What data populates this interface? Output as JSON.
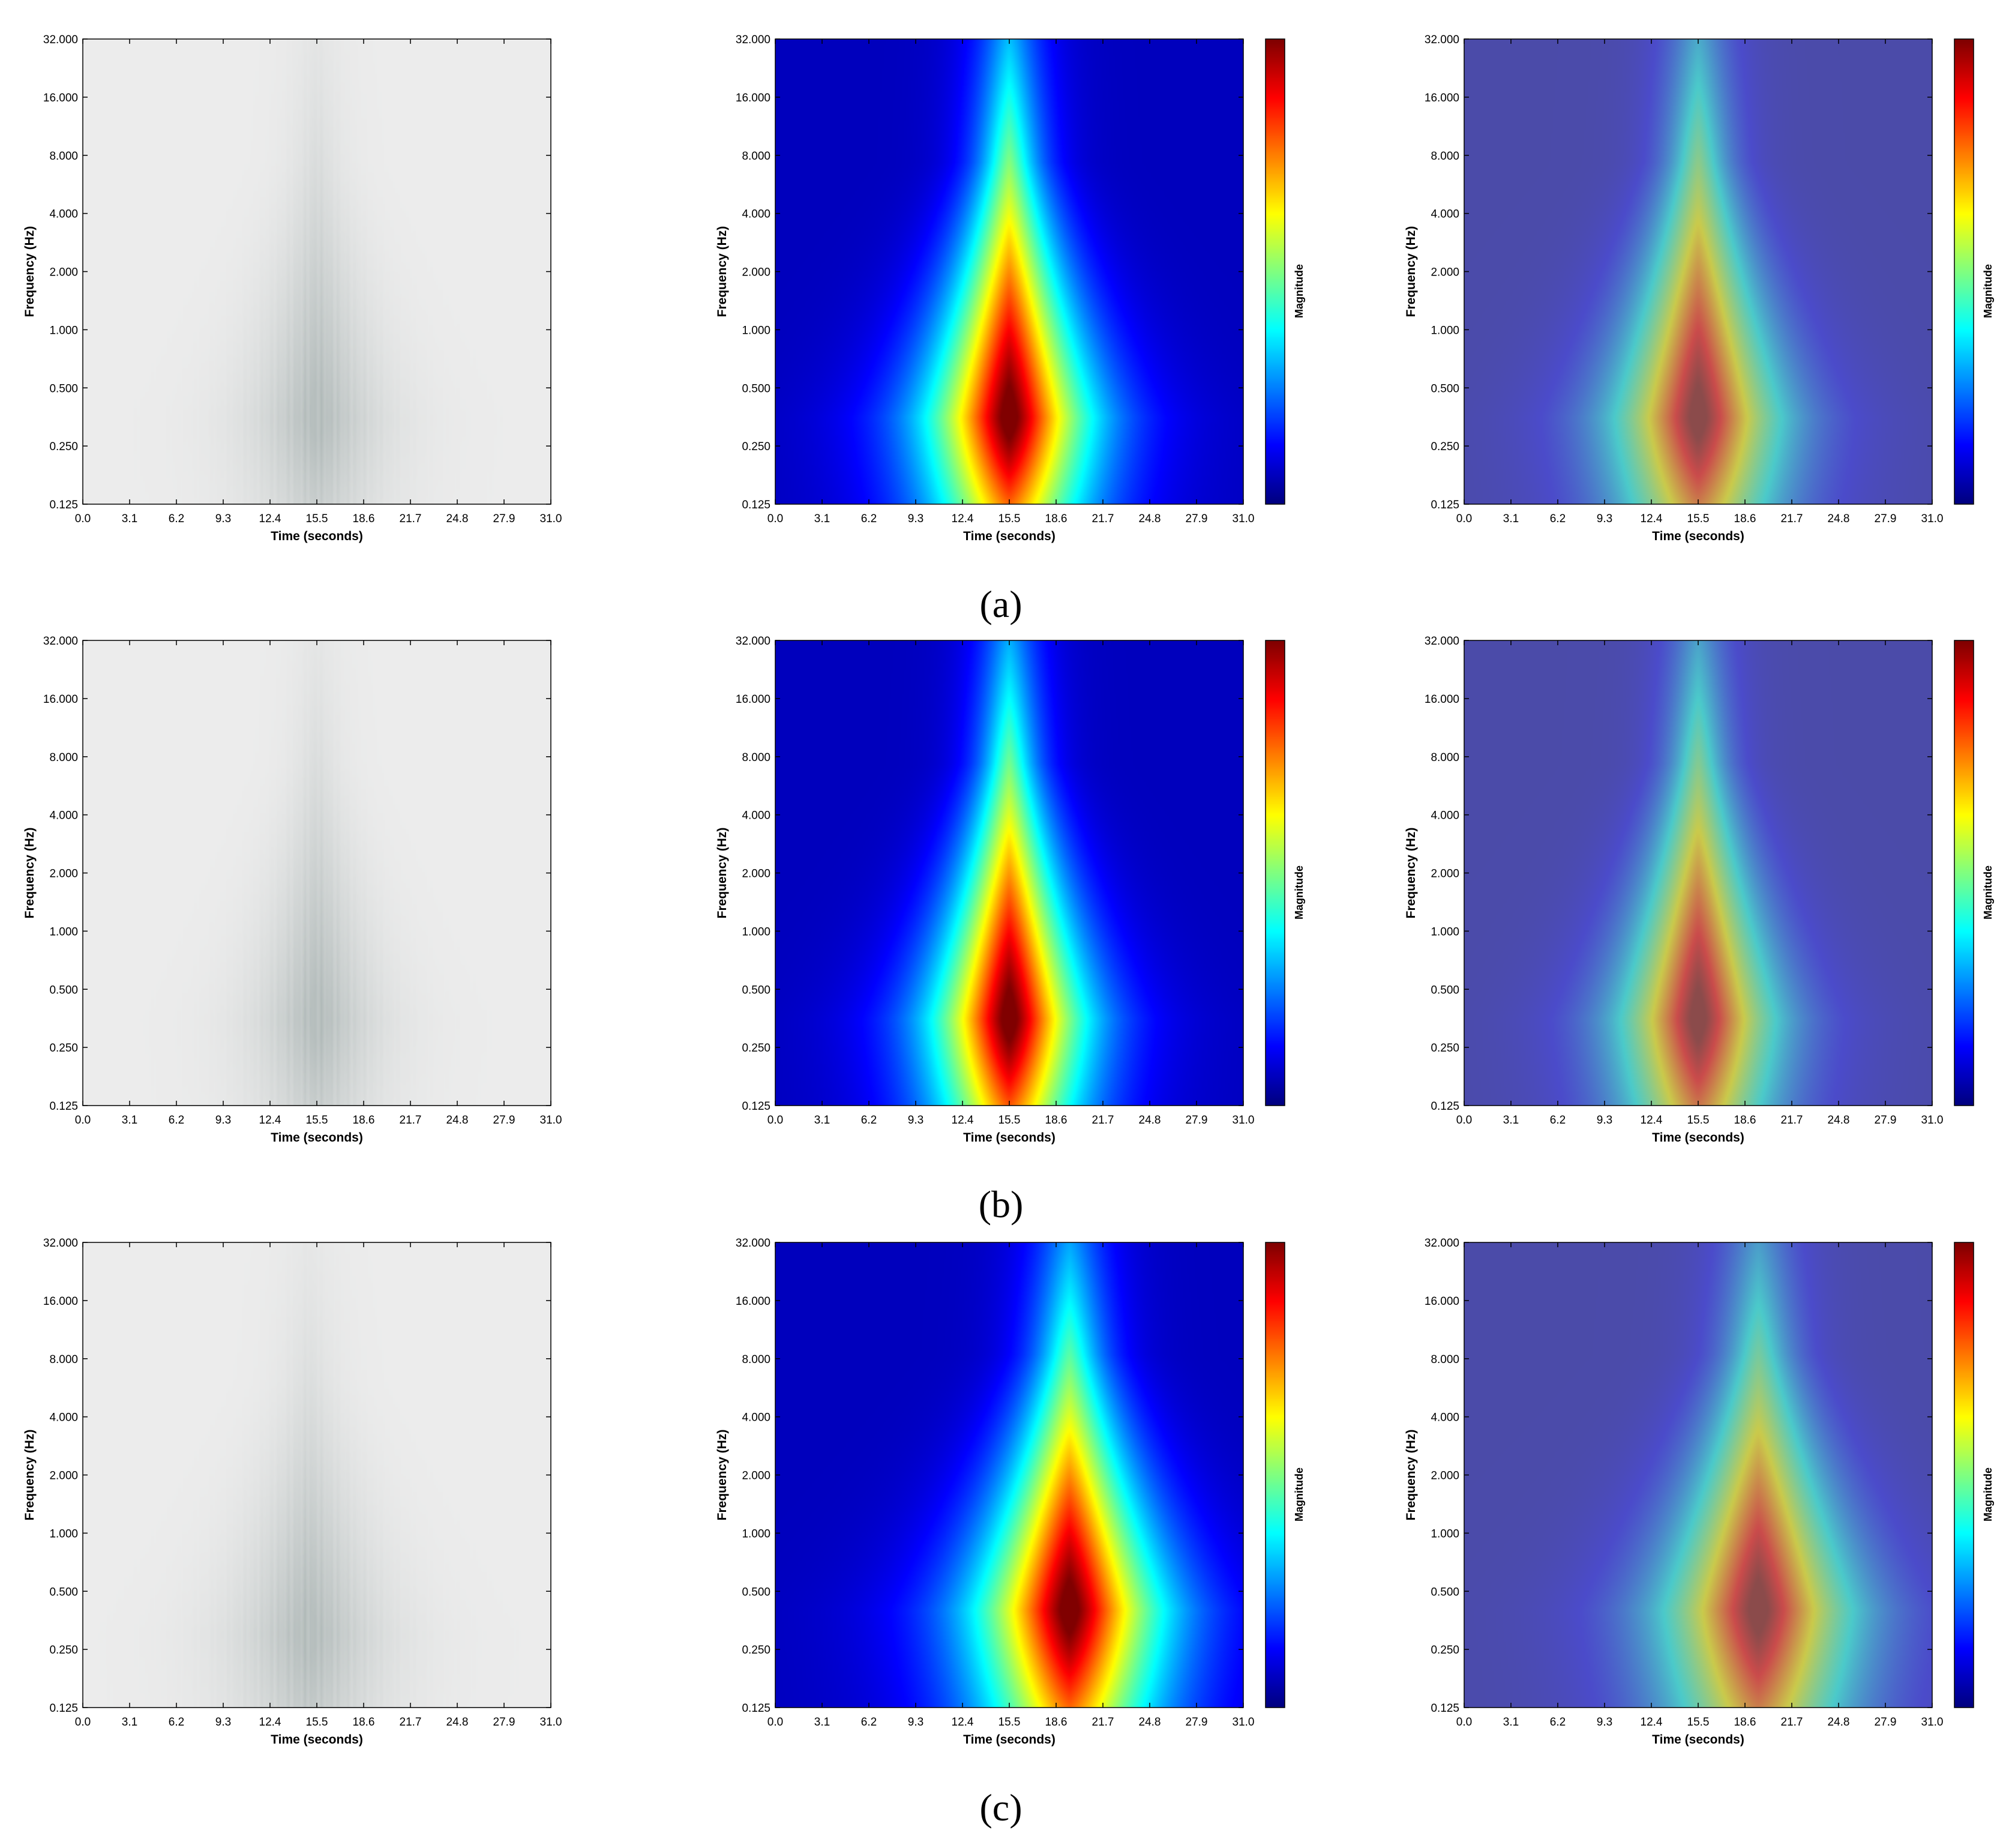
{
  "figure": {
    "captions": [
      "(a)",
      "(b)",
      "(c)"
    ]
  },
  "axes_text": {
    "xlabel": "Time (seconds)",
    "ylabel": "Frequency (Hz)",
    "colorbar_label": "Magnitude"
  },
  "colors": {
    "raw_scalogram_background": "#ececec",
    "raw_scalogram_peak": "#a9b3b2",
    "jet_colormap": [
      "#00007f",
      "#0000ff",
      "#007fff",
      "#00ffff",
      "#7fff7f",
      "#ffff00",
      "#ff7f00",
      "#ff0000",
      "#7f0000"
    ]
  },
  "chart_data": [
    {
      "type": "heatmap",
      "row": "a",
      "panel": "raw scalogram",
      "xlabel": "Time (seconds)",
      "ylabel": "Frequency (Hz)",
      "x_ticks": [
        "0.0",
        "3.1",
        "6.2",
        "9.3",
        "12.4",
        "15.5",
        "18.6",
        "21.7",
        "24.8",
        "27.9",
        "31.0"
      ],
      "y_ticks": [
        "0.125",
        "0.250",
        "0.500",
        "1.000",
        "2.000",
        "4.000",
        "8.000",
        "16.000",
        "32.000"
      ],
      "xlim": [
        0,
        31
      ],
      "ylim": [
        0.125,
        32
      ],
      "yscale": "log2",
      "colormap": "gray",
      "colorbar": false,
      "peak": {
        "time_s": 15.5,
        "frequency_hz": 0.35
      }
    },
    {
      "type": "heatmap",
      "row": "a",
      "panel": "magnitude map",
      "xlabel": "Time (seconds)",
      "ylabel": "Frequency (Hz)",
      "x_ticks": [
        "0.0",
        "3.1",
        "6.2",
        "9.3",
        "12.4",
        "15.5",
        "18.6",
        "21.7",
        "24.8",
        "27.9",
        "31.0"
      ],
      "y_ticks": [
        "0.125",
        "0.250",
        "0.500",
        "1.000",
        "2.000",
        "4.000",
        "8.000",
        "16.000",
        "32.000"
      ],
      "xlim": [
        0,
        31
      ],
      "ylim": [
        0.125,
        32
      ],
      "yscale": "log2",
      "colormap": "jet",
      "colorbar": true,
      "colorbar_label": "Magnitude",
      "peak": {
        "time_s": 15.5,
        "frequency_hz": 0.35
      }
    },
    {
      "type": "heatmap",
      "row": "a",
      "panel": "overlay",
      "xlabel": "Time (seconds)",
      "ylabel": "Frequency (Hz)",
      "x_ticks": [
        "0.0",
        "3.1",
        "6.2",
        "9.3",
        "12.4",
        "15.5",
        "18.6",
        "21.7",
        "24.8",
        "27.9",
        "31.0"
      ],
      "y_ticks": [
        "0.125",
        "0.250",
        "0.500",
        "1.000",
        "2.000",
        "4.000",
        "8.000",
        "16.000",
        "32.000"
      ],
      "xlim": [
        0,
        31
      ],
      "ylim": [
        0.125,
        32
      ],
      "yscale": "log2",
      "colormap": "jet",
      "overlay_alpha": 0.5,
      "colorbar": true,
      "colorbar_label": "Magnitude",
      "peak": {
        "time_s": 15.5,
        "frequency_hz": 0.35
      }
    },
    {
      "type": "heatmap",
      "row": "b",
      "panel": "raw scalogram",
      "xlabel": "Time (seconds)",
      "ylabel": "Frequency (Hz)",
      "x_ticks": [
        "0.0",
        "3.1",
        "6.2",
        "9.3",
        "12.4",
        "15.5",
        "18.6",
        "21.7",
        "24.8",
        "27.9",
        "31.0"
      ],
      "y_ticks": [
        "0.125",
        "0.250",
        "0.500",
        "1.000",
        "2.000",
        "4.000",
        "8.000",
        "16.000",
        "32.000"
      ],
      "xlim": [
        0,
        31
      ],
      "ylim": [
        0.125,
        32
      ],
      "yscale": "log2",
      "colormap": "gray",
      "colorbar": false,
      "peak": {
        "time_s": 15.5,
        "frequency_hz": 0.35
      }
    },
    {
      "type": "heatmap",
      "row": "b",
      "panel": "magnitude map",
      "xlabel": "Time (seconds)",
      "ylabel": "Frequency (Hz)",
      "x_ticks": [
        "0.0",
        "3.1",
        "6.2",
        "9.3",
        "12.4",
        "15.5",
        "18.6",
        "21.7",
        "24.8",
        "27.9",
        "31.0"
      ],
      "y_ticks": [
        "0.125",
        "0.250",
        "0.500",
        "1.000",
        "2.000",
        "4.000",
        "8.000",
        "16.000",
        "32.000"
      ],
      "xlim": [
        0,
        31
      ],
      "ylim": [
        0.125,
        32
      ],
      "yscale": "log2",
      "colormap": "jet",
      "colorbar": true,
      "colorbar_label": "Magnitude",
      "peak": {
        "time_s": 15.5,
        "frequency_hz": 0.35
      }
    },
    {
      "type": "heatmap",
      "row": "b",
      "panel": "overlay",
      "xlabel": "Time (seconds)",
      "ylabel": "Frequency (Hz)",
      "x_ticks": [
        "0.0",
        "3.1",
        "6.2",
        "9.3",
        "12.4",
        "15.5",
        "18.6",
        "21.7",
        "24.8",
        "27.9",
        "31.0"
      ],
      "y_ticks": [
        "0.125",
        "0.250",
        "0.500",
        "1.000",
        "2.000",
        "4.000",
        "8.000",
        "16.000",
        "32.000"
      ],
      "xlim": [
        0,
        31
      ],
      "ylim": [
        0.125,
        32
      ],
      "yscale": "log2",
      "colormap": "jet",
      "overlay_alpha": 0.5,
      "colorbar": true,
      "colorbar_label": "Magnitude",
      "peak": {
        "time_s": 15.5,
        "frequency_hz": 0.35
      }
    },
    {
      "type": "heatmap",
      "row": "c",
      "panel": "raw scalogram",
      "xlabel": "Time (seconds)",
      "ylabel": "Frequency (Hz)",
      "x_ticks": [
        "0.0",
        "3.1",
        "6.2",
        "9.3",
        "12.4",
        "15.5",
        "18.6",
        "21.7",
        "24.8",
        "27.9",
        "31.0"
      ],
      "y_ticks": [
        "0.125",
        "0.250",
        "0.500",
        "1.000",
        "2.000",
        "4.000",
        "8.000",
        "16.000",
        "32.000"
      ],
      "xlim": [
        0,
        31
      ],
      "ylim": [
        0.125,
        32
      ],
      "yscale": "log2",
      "colormap": "gray",
      "colorbar": false,
      "peak": {
        "time_s": 15.0,
        "frequency_hz": 0.3
      }
    },
    {
      "type": "heatmap",
      "row": "c",
      "panel": "magnitude map",
      "xlabel": "Time (seconds)",
      "ylabel": "Frequency (Hz)",
      "x_ticks": [
        "0.0",
        "3.1",
        "6.2",
        "9.3",
        "12.4",
        "15.5",
        "18.6",
        "21.7",
        "24.8",
        "27.9",
        "31.0"
      ],
      "y_ticks": [
        "0.125",
        "0.250",
        "0.500",
        "1.000",
        "2.000",
        "4.000",
        "8.000",
        "16.000",
        "32.000"
      ],
      "xlim": [
        0,
        31
      ],
      "ylim": [
        0.125,
        32
      ],
      "yscale": "log2",
      "colormap": "jet",
      "colorbar": true,
      "colorbar_label": "Magnitude",
      "peak": {
        "time_s": 19.5,
        "frequency_hz": 0.4
      }
    },
    {
      "type": "heatmap",
      "row": "c",
      "panel": "overlay",
      "xlabel": "Time (seconds)",
      "ylabel": "Frequency (Hz)",
      "x_ticks": [
        "0.0",
        "3.1",
        "6.2",
        "9.3",
        "12.4",
        "15.5",
        "18.6",
        "21.7",
        "24.8",
        "27.9",
        "31.0"
      ],
      "y_ticks": [
        "0.125",
        "0.250",
        "0.500",
        "1.000",
        "2.000",
        "4.000",
        "8.000",
        "16.000",
        "32.000"
      ],
      "xlim": [
        0,
        31
      ],
      "ylim": [
        0.125,
        32
      ],
      "yscale": "log2",
      "colormap": "jet",
      "overlay_alpha": 0.5,
      "colorbar": true,
      "colorbar_label": "Magnitude",
      "peak": {
        "time_s": 19.5,
        "frequency_hz": 0.4
      }
    }
  ]
}
